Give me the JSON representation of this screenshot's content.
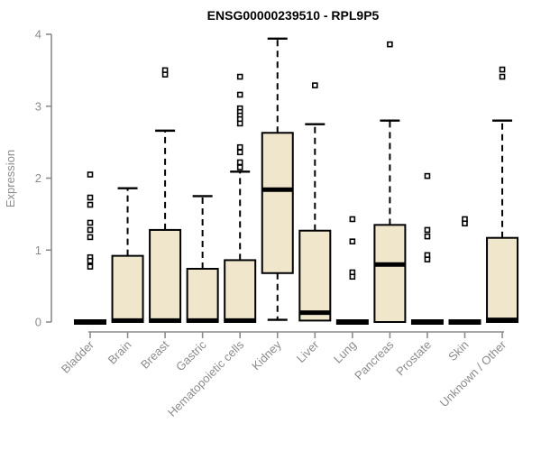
{
  "chart_data": {
    "type": "boxplot",
    "title": "ENSG00000239510 - RPL9P5",
    "xlabel": "",
    "ylabel": "Expression",
    "ylim": [
      0,
      4
    ],
    "yticks": [
      0,
      1,
      2,
      3,
      4
    ],
    "grid": false,
    "legend": "none",
    "colors": {
      "box_fill": "#efe6cc",
      "box_stroke": "#000000",
      "median": "#000000",
      "whisker": "#000000",
      "outlier_stroke": "#000000",
      "outlier_fill": "#ffffff",
      "axis_line": "#8c8c8c",
      "tick_text": "#8c8c8c",
      "title_text": "#000000",
      "background": "#ffffff"
    },
    "categories": [
      "Bladder",
      "Brain",
      "Breast",
      "Gastric",
      "Hematopoietic cells",
      "Kidney",
      "Liver",
      "Lung",
      "Pancreas",
      "Prostate",
      "Skin",
      "Unknown / Other"
    ],
    "series": [
      {
        "label": "Bladder",
        "q1": 0,
        "median": 0,
        "q3": 0,
        "whisker_low": 0,
        "whisker_high": 0,
        "outliers": [
          2.05,
          1.73,
          1.63,
          1.38,
          1.28,
          1.18,
          0.9,
          0.85,
          0.77
        ]
      },
      {
        "label": "Brain",
        "q1": 0,
        "median": 0.02,
        "q3": 0.92,
        "whisker_low": 0,
        "whisker_high": 1.86,
        "outliers": []
      },
      {
        "label": "Breast",
        "q1": 0,
        "median": 0.02,
        "q3": 1.28,
        "whisker_low": 0,
        "whisker_high": 2.66,
        "outliers": [
          3.5,
          3.44
        ]
      },
      {
        "label": "Gastric",
        "q1": 0,
        "median": 0.02,
        "q3": 0.74,
        "whisker_low": 0,
        "whisker_high": 1.75,
        "outliers": []
      },
      {
        "label": "Hematopoietic cells",
        "q1": 0,
        "median": 0.02,
        "q3": 0.86,
        "whisker_low": 0,
        "whisker_high": 2.09,
        "outliers": [
          3.41,
          3.16,
          2.97,
          2.92,
          2.87,
          2.82,
          2.76,
          2.43,
          2.36,
          2.22,
          2.15
        ]
      },
      {
        "label": "Kidney",
        "q1": 0.68,
        "median": 1.84,
        "q3": 2.63,
        "whisker_low": 0.03,
        "whisker_high": 3.94,
        "outliers": []
      },
      {
        "label": "Liver",
        "q1": 0.02,
        "median": 0.13,
        "q3": 1.27,
        "whisker_low": 0.02,
        "whisker_high": 2.75,
        "outliers": [
          3.29
        ]
      },
      {
        "label": "Lung",
        "q1": 0,
        "median": 0,
        "q3": 0,
        "whisker_low": 0,
        "whisker_high": 0,
        "outliers": [
          1.43,
          1.12,
          0.69,
          0.63
        ]
      },
      {
        "label": "Pancreas",
        "q1": 0,
        "median": 0.8,
        "q3": 1.35,
        "whisker_low": 0,
        "whisker_high": 2.8,
        "outliers": [
          3.86
        ]
      },
      {
        "label": "Prostate",
        "q1": 0,
        "median": 0,
        "q3": 0,
        "whisker_low": 0,
        "whisker_high": 0,
        "outliers": [
          2.03,
          1.28,
          1.19,
          0.93,
          0.87
        ]
      },
      {
        "label": "Skin",
        "q1": 0,
        "median": 0,
        "q3": 0,
        "whisker_low": 0,
        "whisker_high": 0,
        "outliers": [
          1.43,
          1.37
        ]
      },
      {
        "label": "Unknown / Other",
        "q1": 0,
        "median": 0.03,
        "q3": 1.17,
        "whisker_low": 0,
        "whisker_high": 2.8,
        "outliers": [
          3.51,
          3.41
        ]
      }
    ]
  }
}
